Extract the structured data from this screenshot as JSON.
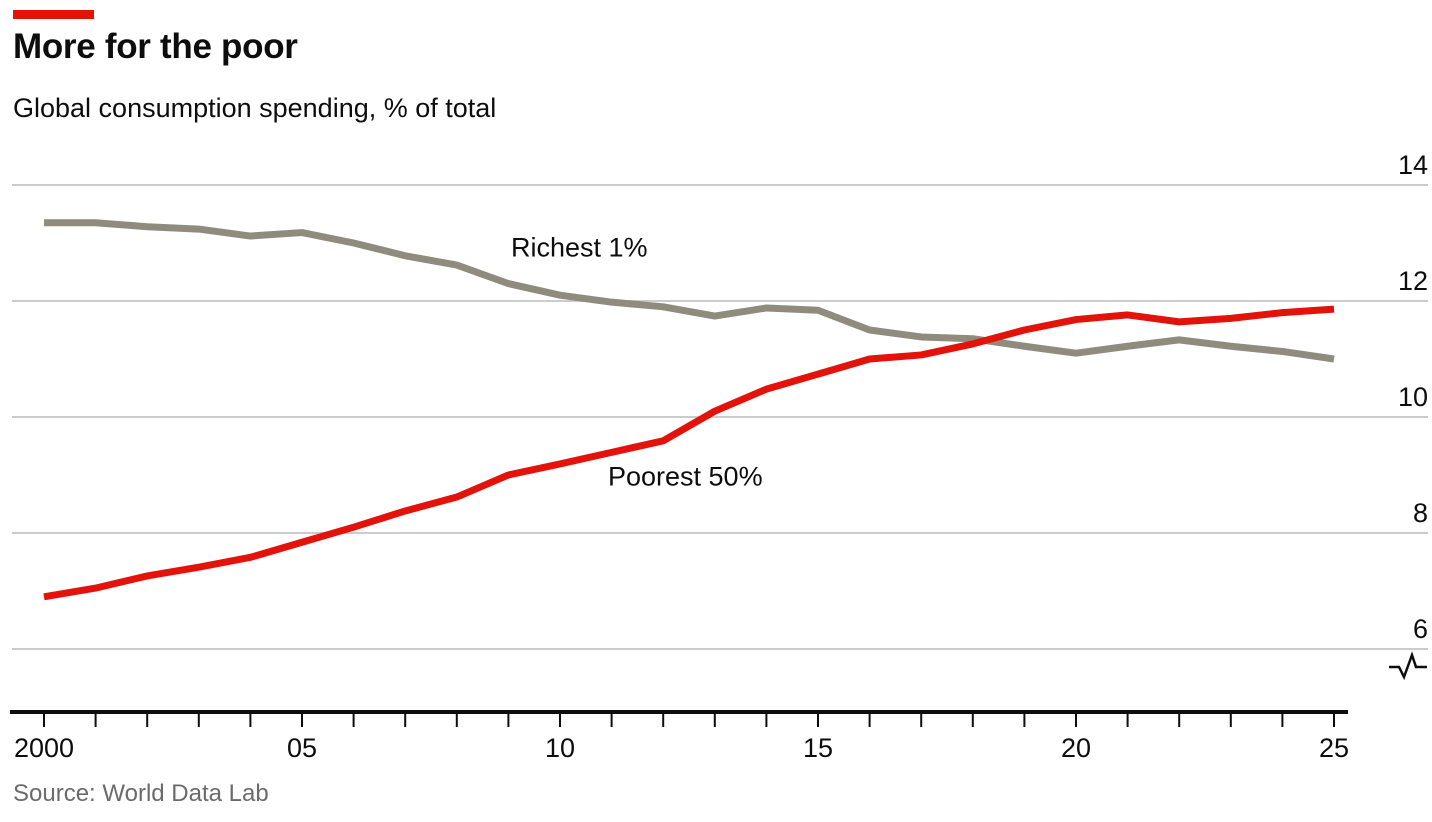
{
  "header": {
    "title": "More for the poor",
    "subtitle": "Global consumption spending, % of total"
  },
  "footer": {
    "source": "Source: World Data Lab"
  },
  "colors": {
    "accent_red": "#e3120b",
    "poorest_line": "#e3120b",
    "richest_line": "#8f8c7e",
    "gridline": "#cccccc",
    "axis": "#0d0d0d",
    "text": "#0d0d0d",
    "source_text": "#6b6b6b"
  },
  "chart_data": {
    "type": "line",
    "title": "More for the poor",
    "subtitle": "Global consumption spending, % of total",
    "ylabel": "% of total",
    "xlabel": "",
    "x": [
      2000,
      2001,
      2002,
      2003,
      2004,
      2005,
      2006,
      2007,
      2008,
      2009,
      2010,
      2011,
      2012,
      2013,
      2014,
      2015,
      2016,
      2017,
      2018,
      2019,
      2020,
      2021,
      2022,
      2023,
      2024,
      2025
    ],
    "series": [
      {
        "name": "Richest 1%",
        "color": "#8f8c7e",
        "values": [
          13.35,
          13.35,
          13.28,
          13.24,
          13.12,
          13.18,
          13.0,
          12.78,
          12.62,
          12.3,
          12.1,
          11.98,
          11.9,
          11.74,
          11.88,
          11.84,
          11.5,
          11.38,
          11.35,
          11.22,
          11.1,
          11.22,
          11.33,
          11.22,
          11.13,
          11.0
        ]
      },
      {
        "name": "Poorest 50%",
        "color": "#e3120b",
        "values": [
          6.9,
          7.05,
          7.26,
          7.41,
          7.58,
          7.84,
          8.1,
          8.38,
          8.62,
          9.0,
          9.19,
          9.39,
          9.59,
          10.1,
          10.48,
          10.74,
          11.0,
          11.07,
          11.26,
          11.5,
          11.68,
          11.76,
          11.64,
          11.7,
          11.8,
          11.86
        ]
      }
    ],
    "annotations": [
      {
        "text": "Richest 1%",
        "year": 2009.05,
        "value": 12.92
      },
      {
        "text": "Poorest 50%",
        "year": 2010.93,
        "value": 8.97
      }
    ],
    "ylim": [
      6,
      14
    ],
    "yticks": [
      6,
      8,
      10,
      12,
      14
    ],
    "xtick_years": [
      2000,
      2005,
      2010,
      2015,
      2020,
      2025
    ],
    "xtick_labels": [
      "2000",
      "05",
      "10",
      "15",
      "20",
      "25"
    ],
    "x_minor_ticks_every_year": true,
    "grid": "horizontal",
    "axis_break": true,
    "legend_position": "inline-labels"
  }
}
